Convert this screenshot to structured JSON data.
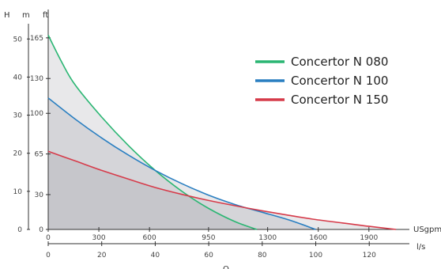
{
  "chart_data": {
    "type": "line",
    "axes": {
      "y_label_primary": "H",
      "y_unit_m": "m",
      "y_unit_ft": "ft",
      "x_unit_usgpm": "USgpm",
      "x_unit_ls": "l/s",
      "x_label_bottom": "Q",
      "m_ticks": [
        0,
        10,
        20,
        30,
        40,
        50
      ],
      "ft_ticks": [
        0,
        30,
        65,
        100,
        130,
        165
      ],
      "usgpm_ticks": [
        0,
        300,
        600,
        950,
        1300,
        1600,
        1900
      ],
      "ls_ticks": [
        0,
        20,
        40,
        60,
        80,
        100,
        120
      ],
      "xlim_ls": [
        0,
        135
      ],
      "ylim_m": [
        0,
        54
      ]
    },
    "series": [
      {
        "name": "Concertor N 080",
        "color": "#2bb673",
        "x_ls": [
          0,
          5,
          10,
          20,
          30,
          40,
          50,
          60,
          70,
          78
        ],
        "y_m": [
          51,
          44,
          38,
          29.5,
          22,
          15.5,
          10,
          5.5,
          2,
          0
        ]
      },
      {
        "name": "Concertor N 100",
        "color": "#2a7fc1",
        "x_ls": [
          0,
          10,
          20,
          30,
          40,
          50,
          60,
          70,
          80,
          90,
          100
        ],
        "y_m": [
          34.5,
          29,
          24,
          19.5,
          15.5,
          12,
          9,
          6.5,
          4.5,
          2.5,
          0
        ]
      },
      {
        "name": "Concertor N 150",
        "color": "#d63b4a",
        "x_ls": [
          0,
          10,
          20,
          30,
          40,
          50,
          60,
          70,
          80,
          90,
          100,
          110,
          120,
          130
        ],
        "y_m": [
          20.5,
          18,
          15.5,
          13.2,
          11,
          9.2,
          7.6,
          6.2,
          4.9,
          3.7,
          2.6,
          1.7,
          0.8,
          0
        ]
      }
    ]
  }
}
